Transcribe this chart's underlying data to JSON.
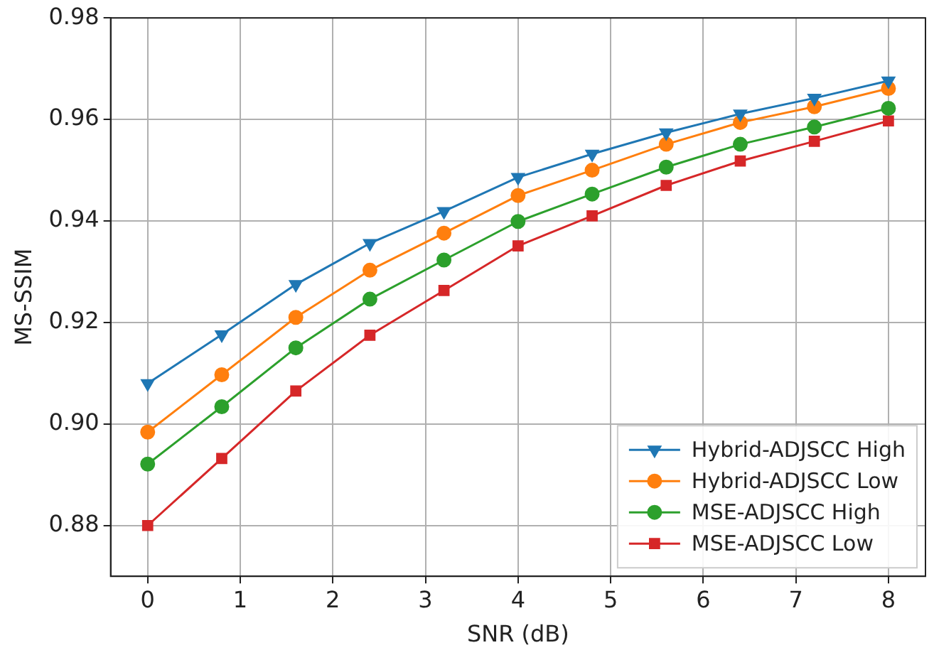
{
  "chart_data": {
    "type": "line",
    "xlabel": "SNR (dB)",
    "ylabel": "MS-SSIM",
    "x": [
      0,
      0.8,
      1.6,
      2.4,
      3.2,
      4,
      4.8,
      5.6,
      6.4,
      7.2,
      8
    ],
    "xlim": [
      -0.4,
      8.4
    ],
    "xticks": [
      0,
      1,
      2,
      3,
      4,
      5,
      6,
      7,
      8
    ],
    "ylim": [
      0.87,
      0.98
    ],
    "yticks": [
      0.88,
      {
        "value": 0.9,
        "label": "0.90"
      },
      0.92,
      0.94,
      0.96,
      0.98
    ],
    "grid": true,
    "legend": "bottom right",
    "line_style": "solid",
    "series": [
      {
        "name": "Hybrid-ADJSCC High",
        "color": "#1f77b4",
        "marker": "triangle",
        "values": [
          0.908,
          0.9176,
          0.9275,
          0.9356,
          0.9419,
          0.9486,
          0.9532,
          0.9574,
          0.9611,
          0.9642,
          0.9676
        ]
      },
      {
        "name": "Hybrid-ADJSCC Low",
        "color": "#ff7f0e",
        "marker": "circle",
        "values": [
          0.8984,
          0.9097,
          0.921,
          0.9303,
          0.9376,
          0.945,
          0.95,
          0.9551,
          0.9594,
          0.9625,
          0.9661
        ]
      },
      {
        "name": "MSE-ADJSCC High",
        "color": "#2ca02c",
        "marker": "circle",
        "values": [
          0.8921,
          0.9034,
          0.915,
          0.9246,
          0.9323,
          0.9399,
          0.9453,
          0.9506,
          0.9551,
          0.9585,
          0.9622
        ]
      },
      {
        "name": "MSE-ADJSCC Low",
        "color": "#d62728",
        "marker": "square",
        "values": [
          0.88,
          0.8932,
          0.9065,
          0.9175,
          0.9263,
          0.9351,
          0.941,
          0.947,
          0.9518,
          0.9557,
          0.9597
        ]
      }
    ]
  }
}
